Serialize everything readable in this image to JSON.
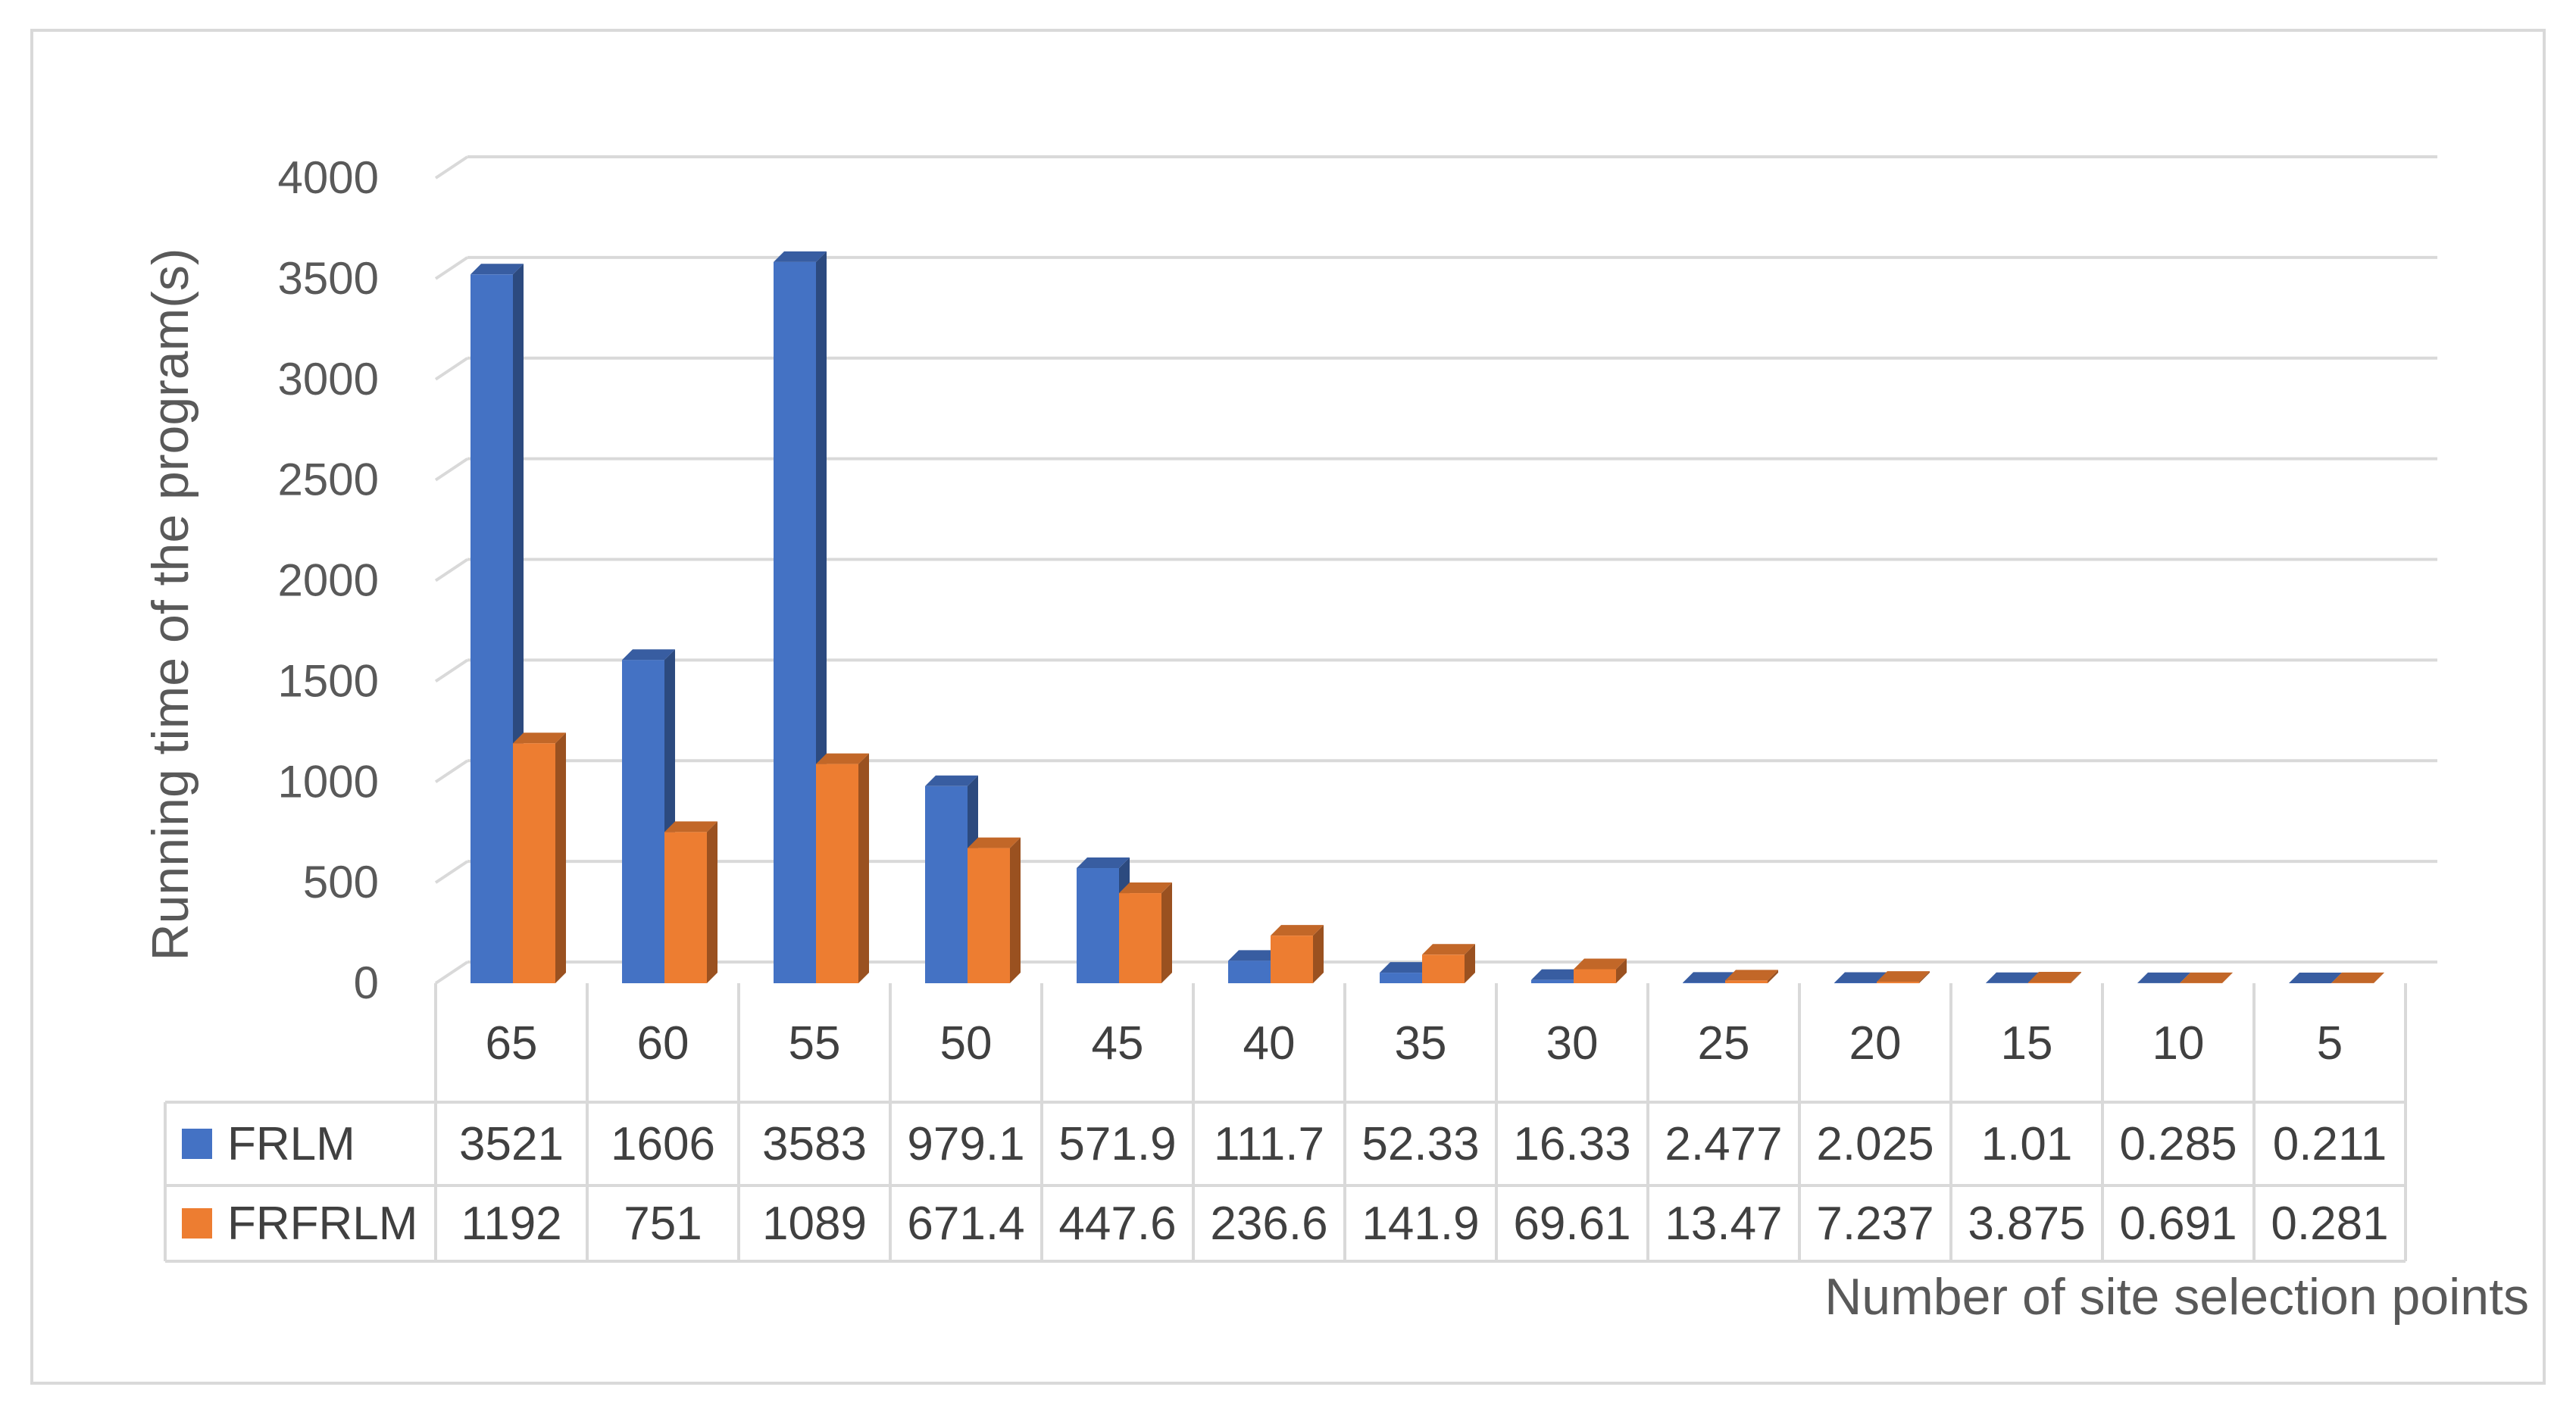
{
  "chart_data": {
    "type": "bar",
    "title": "",
    "xlabel": "Number of site selection points",
    "ylabel": "Running time of the program(s)",
    "ylim": [
      0,
      4000
    ],
    "yticks": [
      "0",
      "500",
      "1000",
      "1500",
      "2000",
      "2500",
      "3000",
      "3500",
      "4000"
    ],
    "grid": true,
    "legend": "data-table",
    "categories": [
      "65",
      "60",
      "55",
      "50",
      "45",
      "40",
      "35",
      "30",
      "25",
      "20",
      "15",
      "10",
      "5"
    ],
    "series": [
      {
        "name": "FRLM",
        "color": "#4472C4",
        "values": [
          3521,
          1606,
          3583,
          979.1,
          571.9,
          111.7,
          52.33,
          16.33,
          2.477,
          2.025,
          1.01,
          0.285,
          0.211
        ],
        "labels": [
          "3521",
          "1606",
          "3583",
          "979.1",
          "571.9",
          "111.7",
          "52.33",
          "16.33",
          "2.477",
          "2.025",
          "1.01",
          "0.285",
          "0.211"
        ]
      },
      {
        "name": "FRFRLM",
        "color": "#ED7D31",
        "values": [
          1192,
          751,
          1089,
          671.4,
          447.6,
          236.6,
          141.9,
          69.61,
          13.47,
          7.237,
          3.875,
          0.691,
          0.281
        ],
        "labels": [
          "1192",
          "751",
          "1089",
          "671.4",
          "447.6",
          "236.6",
          "141.9",
          "69.61",
          "13.47",
          "7.237",
          "3.875",
          "0.691",
          "0.281"
        ]
      }
    ]
  }
}
